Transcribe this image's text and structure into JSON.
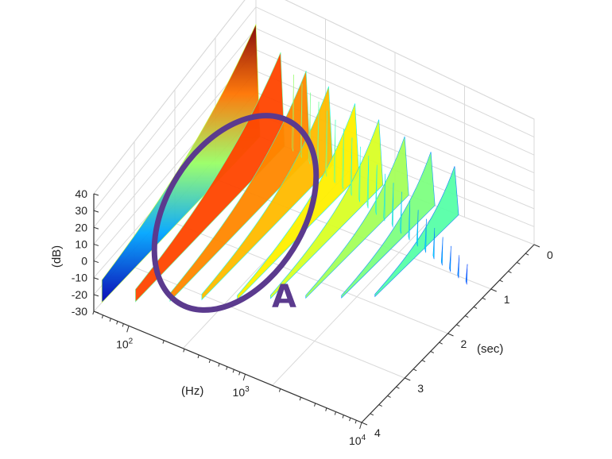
{
  "chart_data": {
    "type": "surface-3d",
    "title": "",
    "zlabel": "(dB)",
    "xlabel": "(Hz)",
    "ylabel": "(sec)",
    "z_ticks": [
      "40",
      "30",
      "20",
      "10",
      "0",
      "-10",
      "-20",
      "-30"
    ],
    "x_scale": "log",
    "x_ticks": [
      {
        "base": "10",
        "exp": "2"
      },
      {
        "base": "10",
        "exp": "3"
      },
      {
        "base": "10",
        "exp": "4"
      }
    ],
    "y_ticks": [
      "0",
      "1",
      "2",
      "3",
      "4"
    ],
    "zlim": [
      -30,
      40
    ],
    "ylim": [
      0,
      4
    ],
    "xlim": [
      50,
      10000
    ],
    "grid": true,
    "colormap": "jet",
    "peaks": [
      {
        "freq_hz": 50,
        "time_s": 0.0,
        "level_db": 36
      },
      {
        "freq_hz": 80,
        "time_s": 0.0,
        "level_db": 25
      },
      {
        "freq_hz": 130,
        "time_s": 0.0,
        "level_db": 20
      },
      {
        "freq_hz": 200,
        "time_s": 0.0,
        "level_db": 16
      },
      {
        "freq_hz": 330,
        "time_s": 0.0,
        "level_db": 12
      },
      {
        "freq_hz": 520,
        "time_s": 0.0,
        "level_db": 8
      },
      {
        "freq_hz": 850,
        "time_s": 0.0,
        "level_db": 4
      },
      {
        "freq_hz": 1400,
        "time_s": 0.0,
        "level_db": 1
      },
      {
        "freq_hz": 2200,
        "time_s": 0.0,
        "level_db": -2
      }
    ],
    "annotation": {
      "label": "A",
      "color": "#5b3a8e",
      "shape": "ellipse"
    }
  }
}
